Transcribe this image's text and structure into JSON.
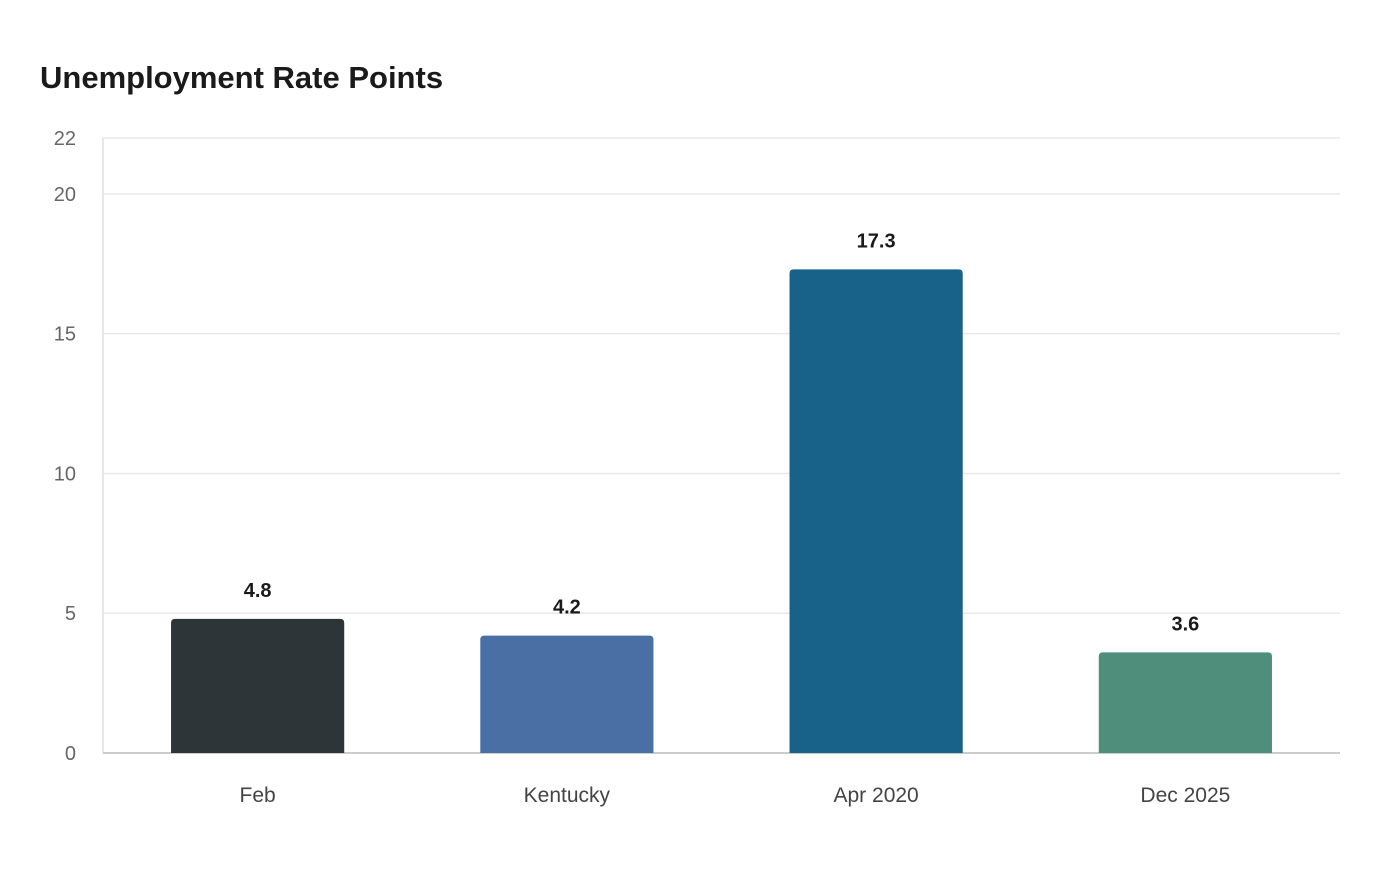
{
  "chart_data": {
    "type": "bar",
    "title": "Unemployment Rate Points",
    "xlabel": "",
    "ylabel": "",
    "categories": [
      "Feb",
      "Kentucky",
      "Apr 2020",
      "Dec 2025"
    ],
    "values": [
      4.8,
      4.2,
      17.3,
      3.6
    ],
    "value_labels": [
      "4.8",
      "4.2",
      "17.3",
      "3.6"
    ],
    "colors": [
      "#2d3538",
      "#4a6fa5",
      "#186188",
      "#4e8e7a"
    ],
    "ylim": [
      0,
      22
    ],
    "yticks": [
      0,
      5,
      10,
      15,
      20,
      22
    ],
    "grid": true,
    "legend": "none"
  }
}
